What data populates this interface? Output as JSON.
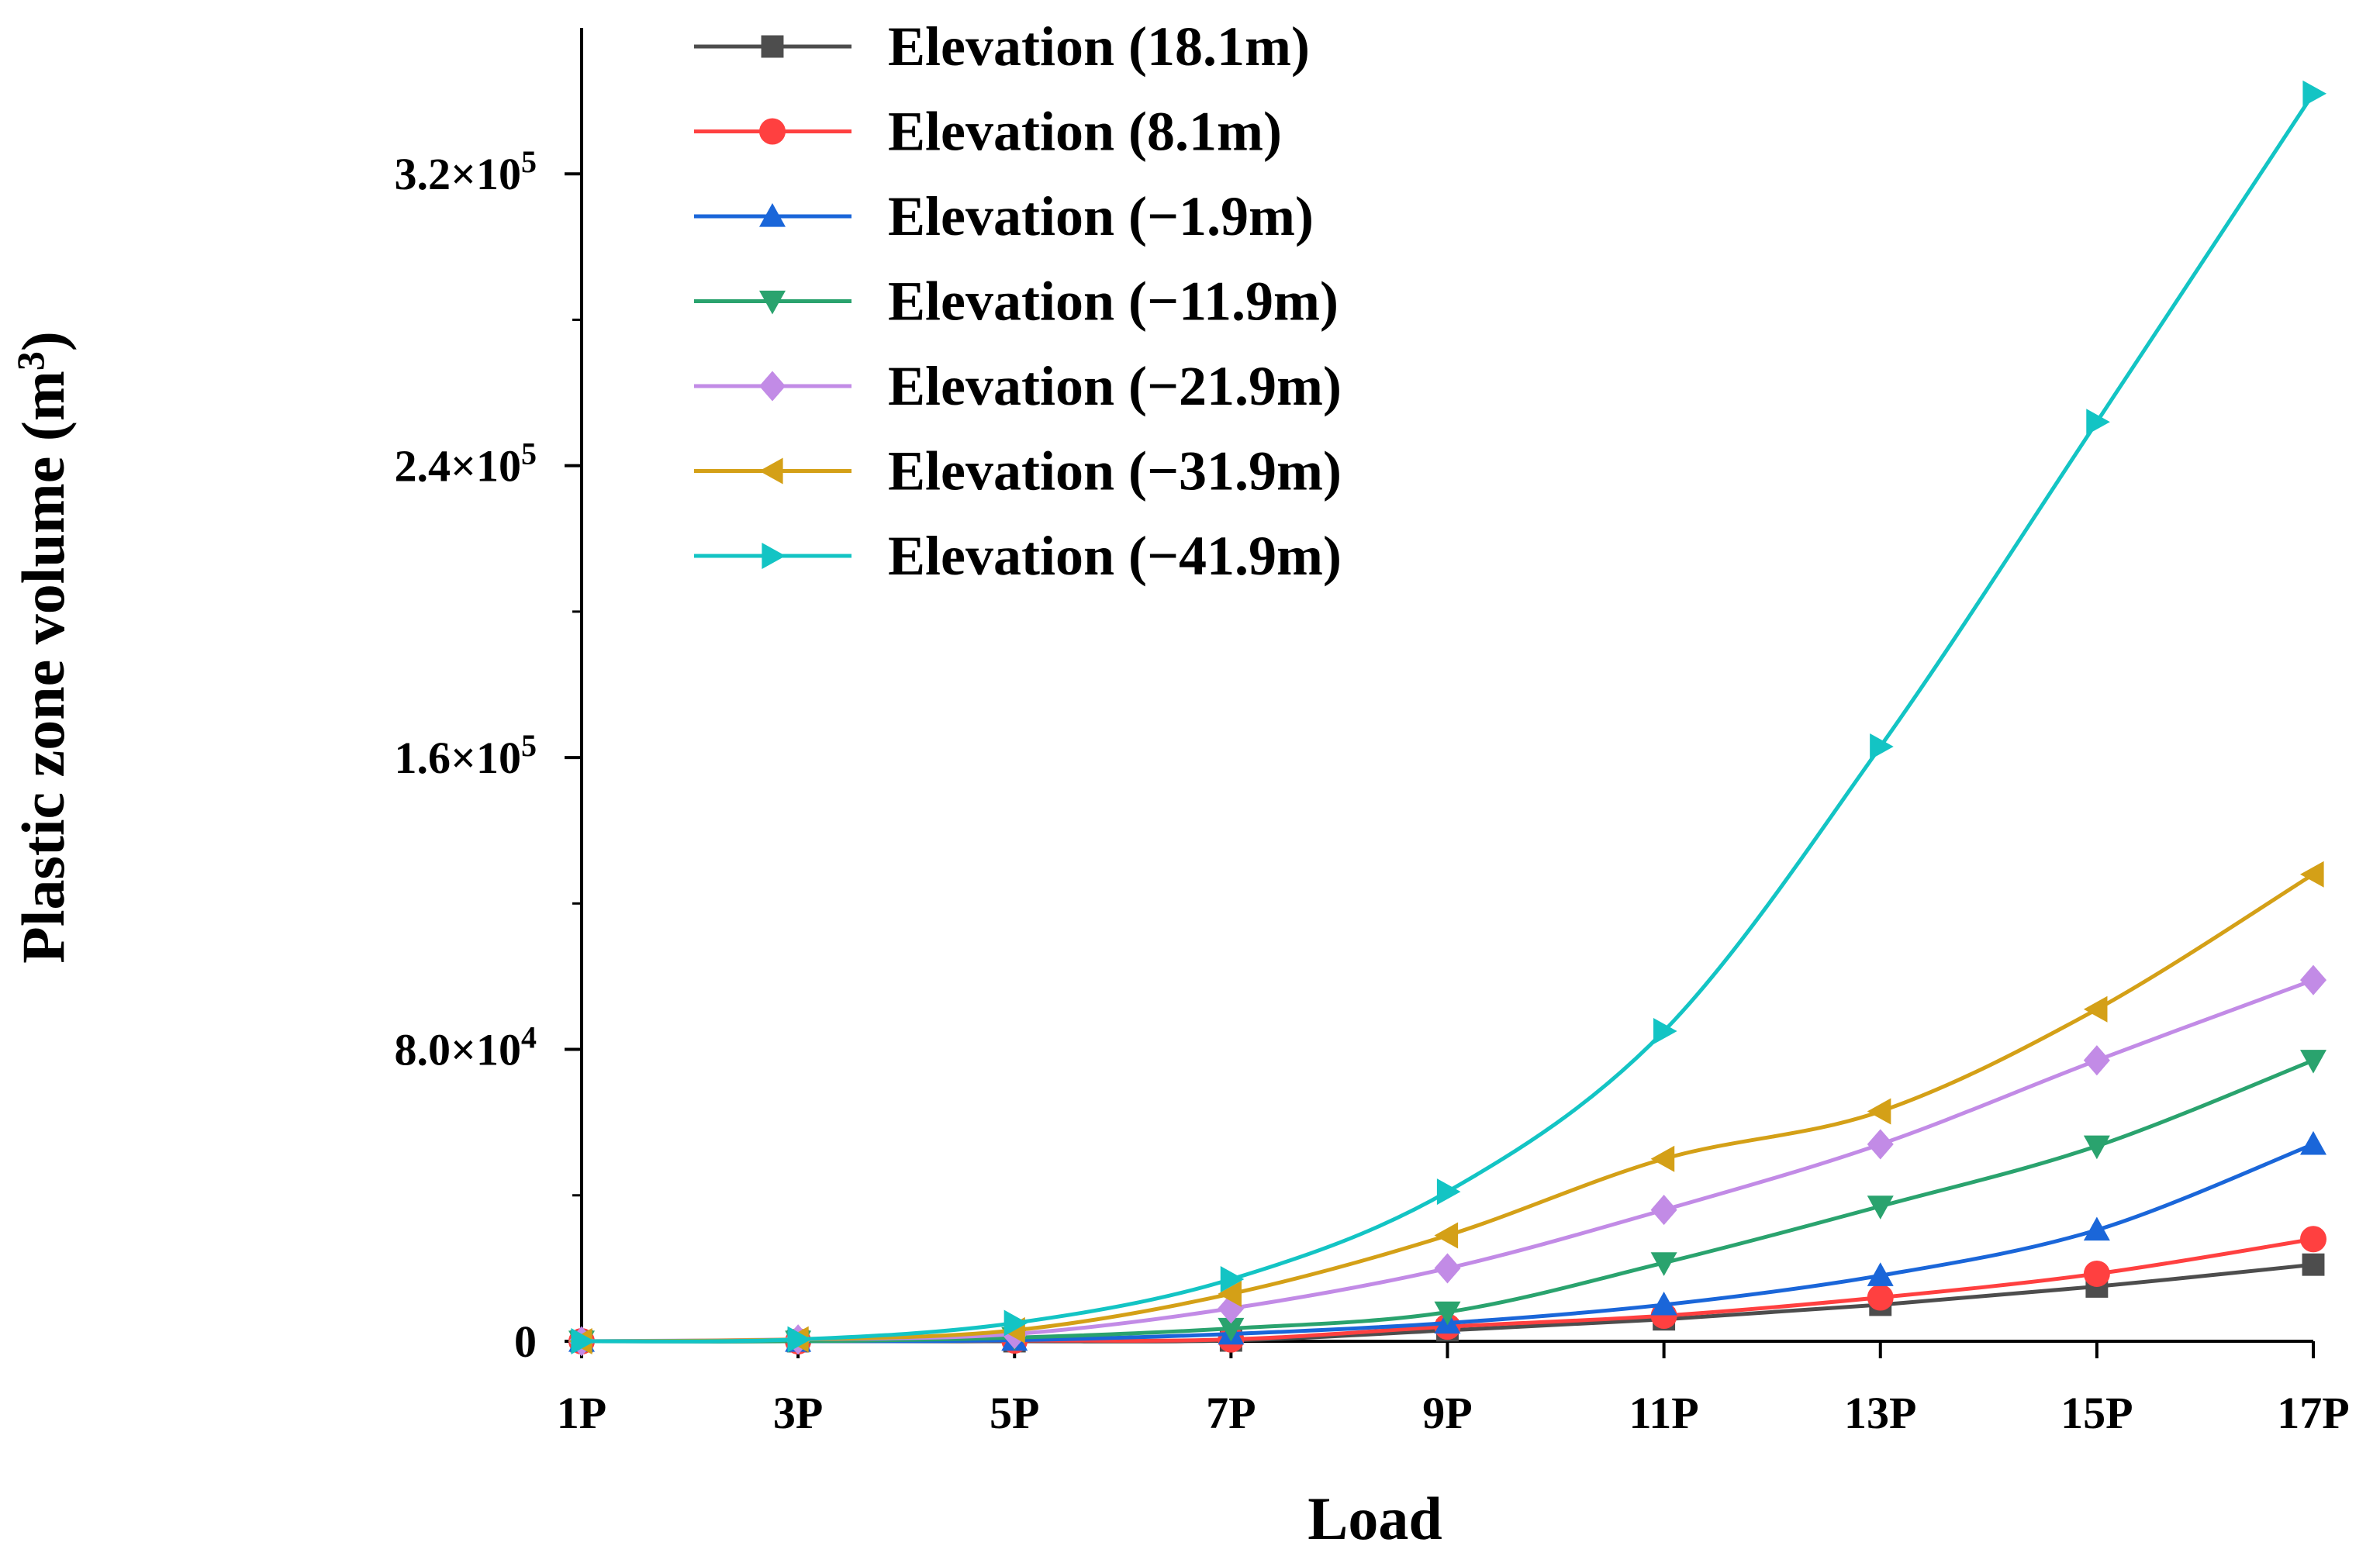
{
  "chart_data": {
    "type": "line",
    "title": "",
    "xlabel": "Load",
    "ylabel_main": "Plastic zone volume (m",
    "ylabel_sup": "3",
    "ylabel_close": ")",
    "categories": [
      "1P",
      "3P",
      "5P",
      "7P",
      "9P",
      "11P",
      "13P",
      "15P",
      "17P"
    ],
    "ylim": [
      0,
      360000
    ],
    "yticks": [
      {
        "value": 0,
        "mantissa": "0",
        "exp": ""
      },
      {
        "value": 80000,
        "mantissa": "8.0×10",
        "exp": "4"
      },
      {
        "value": 160000,
        "mantissa": "1.6×10",
        "exp": "5"
      },
      {
        "value": 240000,
        "mantissa": "2.4×10",
        "exp": "5"
      },
      {
        "value": 320000,
        "mantissa": "3.2×10",
        "exp": "5"
      }
    ],
    "minor_ticks": [
      40000,
      120000,
      200000,
      280000
    ],
    "legend_position": "top-left",
    "series": [
      {
        "name": "Elevation (18.1m)",
        "color": "#4d4d4d",
        "marker": "square",
        "values": [
          0,
          0,
          0,
          200,
          3000,
          6000,
          10000,
          15000,
          21000
        ]
      },
      {
        "name": "Elevation (8.1m)",
        "color": "#ff4040",
        "marker": "circle",
        "values": [
          0,
          0,
          200,
          500,
          4000,
          7000,
          12000,
          18500,
          28000
        ]
      },
      {
        "name": "Elevation (−1.9m)",
        "color": "#1a66d9",
        "marker": "triangle-up",
        "values": [
          0,
          0,
          300,
          2000,
          5000,
          10000,
          18000,
          30500,
          54000
        ]
      },
      {
        "name": "Elevation (−11.9m)",
        "color": "#2aa36e",
        "marker": "triangle-down",
        "values": [
          0,
          0,
          1000,
          3500,
          8000,
          21500,
          37000,
          53500,
          77000
        ]
      },
      {
        "name": "Elevation (−21.9m)",
        "color": "#c28be6",
        "marker": "diamond",
        "values": [
          0,
          500,
          2000,
          9000,
          20000,
          36000,
          54000,
          77000,
          99000
        ]
      },
      {
        "name": "Elevation (−31.9m)",
        "color": "#d4a017",
        "marker": "triangle-left",
        "values": [
          0,
          500,
          3000,
          13000,
          29000,
          50000,
          63000,
          91000,
          128000
        ]
      },
      {
        "name": "Elevation (−41.9m)",
        "color": "#13c4c4",
        "marker": "triangle-right",
        "values": [
          0,
          500,
          5000,
          17000,
          41000,
          85000,
          163000,
          252000,
          342000
        ]
      }
    ]
  }
}
